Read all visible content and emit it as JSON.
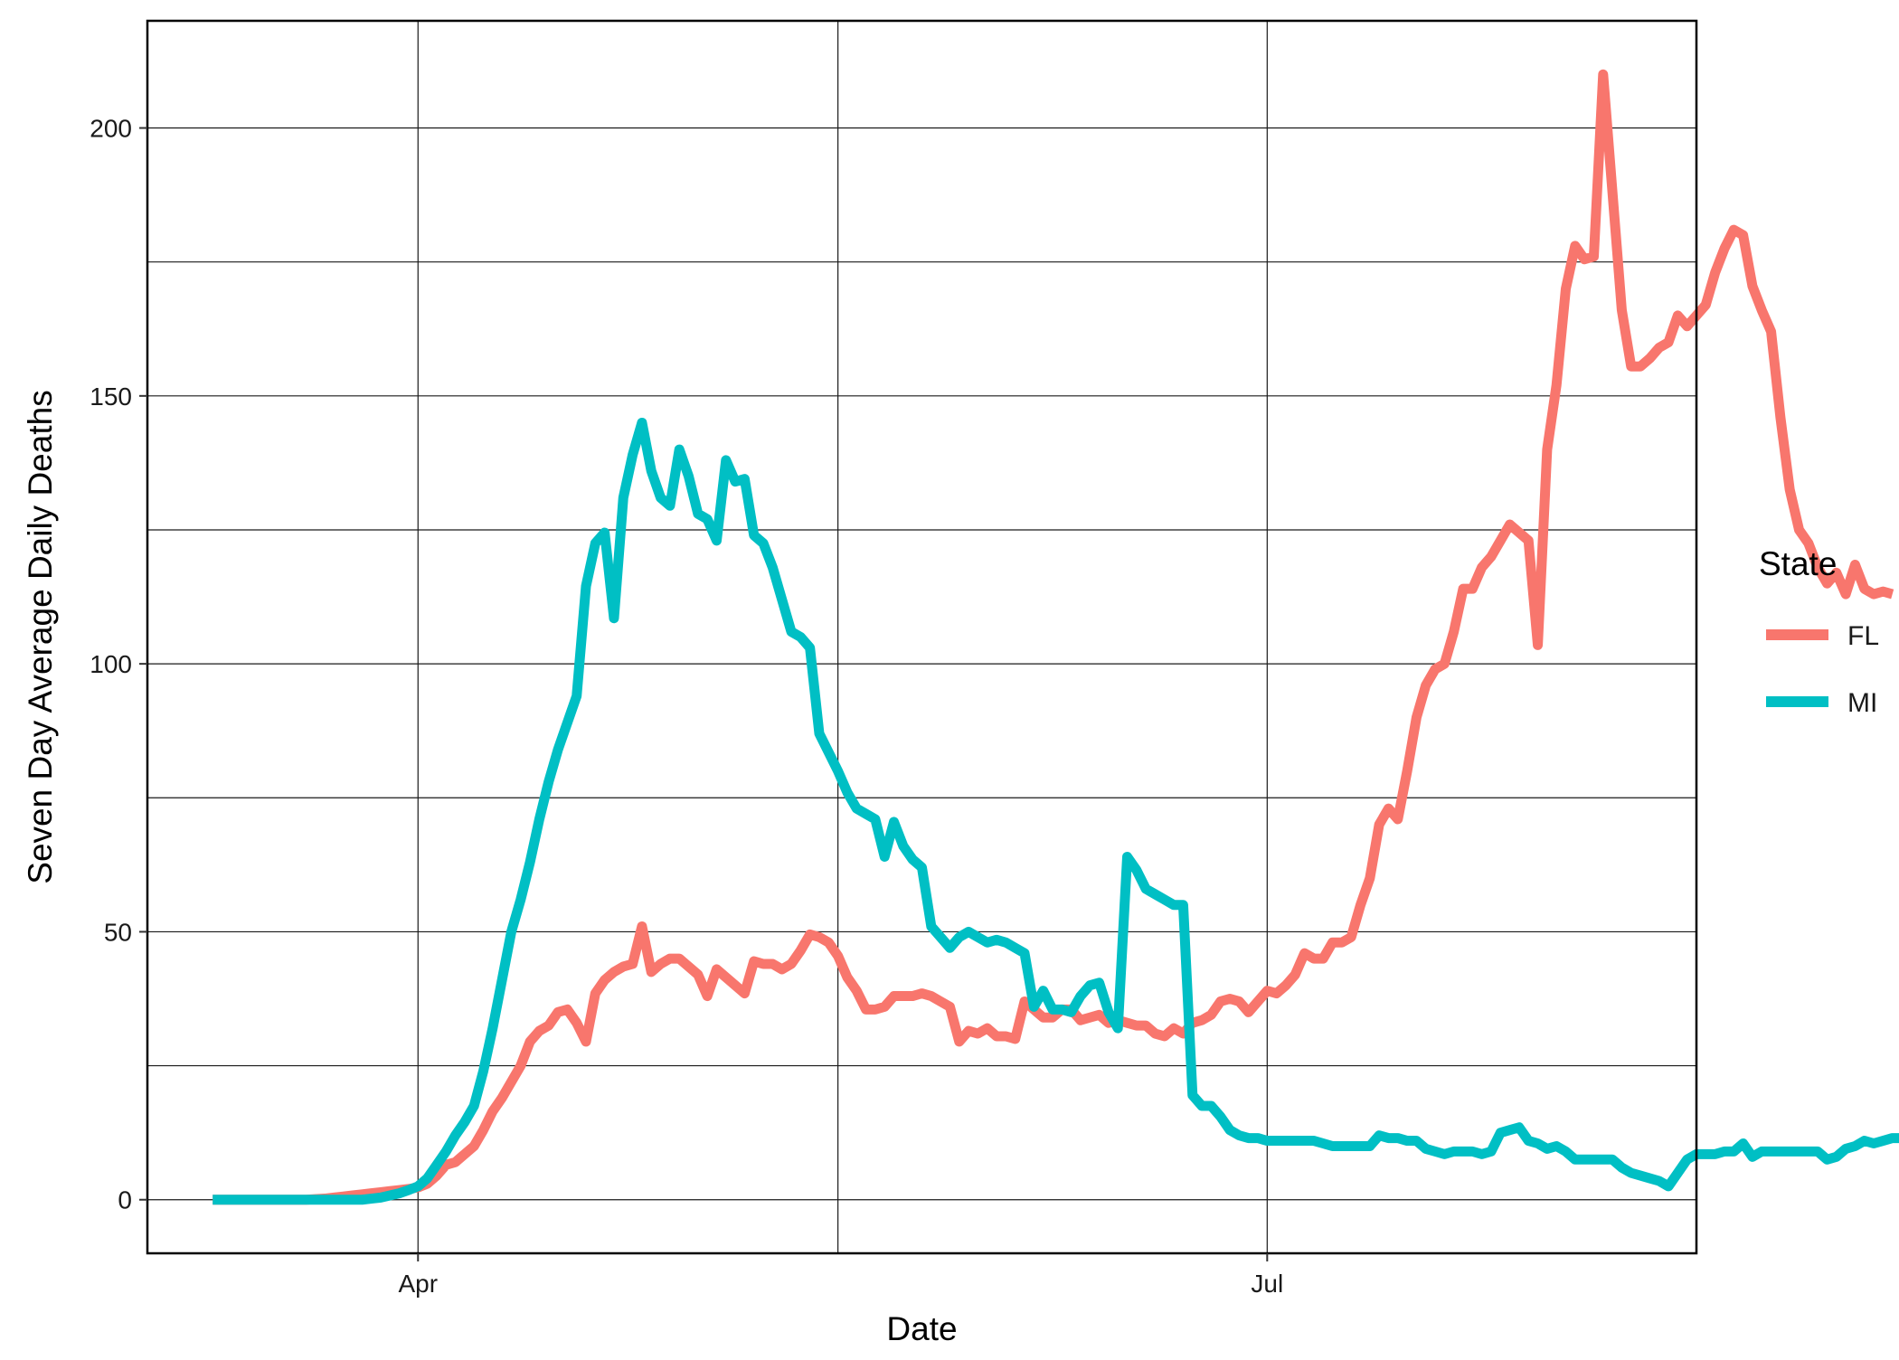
{
  "chart_data": {
    "type": "line",
    "xlabel": "Date",
    "ylabel": "Seven Day Average Daily Deaths",
    "x_start": "2020-03-10",
    "x_step": "1 day",
    "xlim": [
      "2020-03-03",
      "2020-08-16"
    ],
    "ylim": [
      -10,
      220
    ],
    "y_ticks": [
      0,
      50,
      100,
      150,
      200
    ],
    "y_minor_ticks": [
      25,
      75,
      125,
      175
    ],
    "x_ticks": [
      {
        "date": "2020-04-01",
        "label": "Apr"
      },
      {
        "date": "2020-07-01",
        "label": "Jul"
      }
    ],
    "x_minor_ticks": [
      "2020-05-16",
      "2020-08-16"
    ],
    "grid": true,
    "legend": {
      "title": "State",
      "position": "right"
    },
    "series": [
      {
        "name": "FL",
        "color": "#F8766D",
        "values": [
          0,
          0,
          0,
          0,
          0,
          0,
          0,
          0,
          0,
          0,
          0,
          0.1,
          0.2,
          0.4,
          0.6,
          0.8,
          1,
          1.2,
          1.4,
          1.6,
          1.8,
          2,
          2.3,
          3,
          4.5,
          6.5,
          7,
          8.5,
          10,
          13,
          16.5,
          19,
          22,
          25,
          29.5,
          31.5,
          32.5,
          35,
          35.5,
          33,
          29.5,
          38.5,
          41,
          42.5,
          43.5,
          44,
          51,
          42.5,
          44,
          45,
          45,
          43.5,
          42,
          38,
          43,
          41.5,
          40,
          38.5,
          44.5,
          44,
          44,
          43,
          44,
          46.5,
          49.5,
          49,
          48,
          45.5,
          41.5,
          39,
          35.5,
          35.5,
          36,
          38,
          38,
          38,
          38.5,
          38,
          37,
          36,
          29.5,
          31.5,
          31,
          32,
          30.5,
          30.5,
          30,
          37,
          35.5,
          34,
          34,
          35.5,
          35.5,
          33.5,
          34,
          34.5,
          33,
          33.5,
          33,
          32.5,
          32.5,
          31,
          30.5,
          32,
          31,
          33,
          33.5,
          34.5,
          37,
          37.5,
          37,
          35,
          37,
          39,
          38.5,
          40,
          42,
          46,
          45,
          45,
          48,
          48,
          49,
          55,
          60,
          70,
          73,
          71,
          80,
          90,
          96,
          99,
          100,
          106,
          114,
          114,
          118,
          120,
          123,
          126,
          124.5,
          123,
          103.5,
          140,
          152,
          170,
          178,
          175.5,
          176,
          210,
          188,
          166,
          155.5,
          155.5,
          157,
          159,
          160,
          165,
          163,
          165,
          167,
          173,
          177.5,
          181,
          180,
          170.5,
          166,
          162,
          146,
          132.5,
          125,
          122.5,
          118,
          115,
          117,
          113,
          118.5,
          114,
          113,
          113.5,
          113
        ],
        "_values_note": ""
      },
      {
        "name": "MI",
        "color": "#00BFC4",
        "values": [
          0,
          0,
          0,
          0,
          0,
          0,
          0,
          0,
          0,
          0,
          0,
          0,
          0,
          0,
          0,
          0,
          0,
          0.2,
          0.4,
          0.8,
          1.2,
          1.8,
          2.5,
          4,
          6.5,
          9,
          12,
          14.5,
          17.5,
          24,
          32,
          41,
          50,
          56,
          63,
          71,
          78,
          84,
          89,
          94,
          114.5,
          122.5,
          124.5,
          108.5,
          131,
          139,
          145,
          136,
          131,
          129.5,
          140,
          135,
          128,
          127,
          123,
          138,
          134,
          134.5,
          124,
          122.5,
          118,
          112,
          106,
          105,
          103,
          87,
          83.5,
          80,
          76,
          73,
          72,
          71,
          64,
          70.5,
          66,
          63.5,
          62,
          51,
          49,
          47,
          49,
          50,
          49,
          48,
          48.5,
          48,
          47,
          46,
          36,
          39,
          35.5,
          35.5,
          35,
          38,
          40,
          40.5,
          35,
          32,
          64,
          61.5,
          58,
          57,
          56,
          55,
          55,
          19.5,
          17.5,
          17.5,
          15.5,
          13,
          12,
          11.5,
          11.5,
          11,
          11,
          11,
          11,
          11,
          11,
          10.5,
          10,
          10,
          10,
          10,
          10,
          12,
          11.5,
          11.5,
          11,
          11,
          9.5,
          9,
          8.5,
          9,
          9,
          9,
          8.5,
          9,
          12.5,
          13,
          13.5,
          11,
          10.5,
          9.5,
          10,
          9,
          7.5,
          7.5,
          7.5,
          7.5,
          7.5,
          6,
          5,
          4.5,
          4,
          3.5,
          2.5,
          5,
          7.5,
          8.5,
          8.5,
          8.5,
          9,
          9,
          10.5,
          8,
          9,
          9,
          9,
          9,
          9,
          9,
          9,
          7.5,
          8,
          9.5,
          10,
          11,
          10.5,
          11,
          11.5,
          11.5,
          10,
          10,
          10,
          10.5,
          10,
          10.5,
          11,
          10.5,
          11,
          8,
          12,
          12.5,
          12
        ]
      }
    ]
  }
}
